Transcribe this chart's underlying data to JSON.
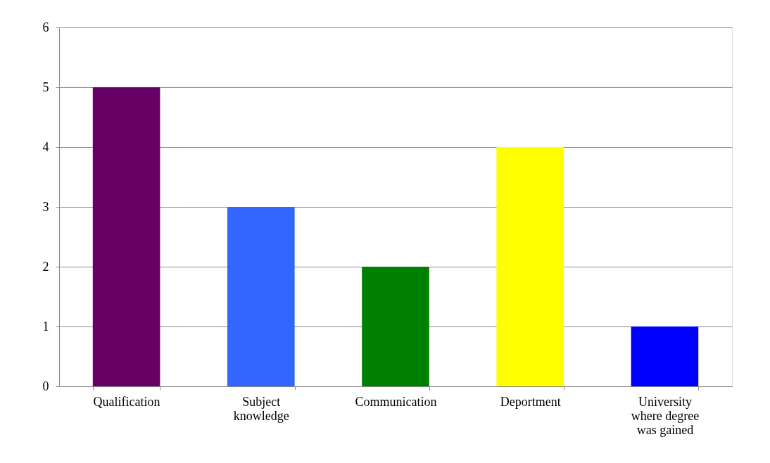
{
  "chart_data": {
    "type": "bar",
    "categories": [
      "Qualification",
      "Subject knowledge",
      "Communication",
      "Deportment",
      "University where degree was gained"
    ],
    "values": [
      5,
      3,
      2,
      4,
      1
    ],
    "colors": [
      "#660066",
      "#3366ff",
      "#008000",
      "#ffff00",
      "#0000ff"
    ],
    "ylim": [
      0,
      6
    ],
    "yticks": [
      0,
      1,
      2,
      3,
      4,
      5,
      6
    ],
    "grid": "y",
    "legend": false
  }
}
